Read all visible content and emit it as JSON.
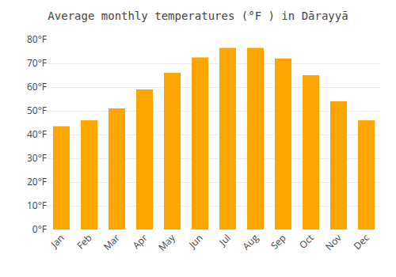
{
  "chart_data": {
    "type": "bar",
    "title": "Average monthly temperatures (°F ) in Dārayyā",
    "categories": [
      "Jan",
      "Feb",
      "Mar",
      "Apr",
      "May",
      "Jun",
      "Jul",
      "Aug",
      "Sep",
      "Oct",
      "Nov",
      "Dec"
    ],
    "values": [
      43.5,
      46.0,
      51.0,
      59.0,
      66.0,
      72.5,
      76.5,
      76.5,
      72.0,
      65.0,
      54.0,
      46.0
    ],
    "color": "#FFA500",
    "ylim": [
      0,
      80
    ],
    "yticks": [
      {
        "value": 0,
        "label": "0°F"
      },
      {
        "value": 10,
        "label": "10°F"
      },
      {
        "value": 20,
        "label": "20°F"
      },
      {
        "value": 30,
        "label": "30°F"
      },
      {
        "value": 40,
        "label": "40°F"
      },
      {
        "value": 50,
        "label": "50°F"
      },
      {
        "value": 60,
        "label": "60°F"
      },
      {
        "value": 70,
        "label": "70°F"
      },
      {
        "value": 80,
        "label": "80°F"
      }
    ],
    "grid": true
  }
}
